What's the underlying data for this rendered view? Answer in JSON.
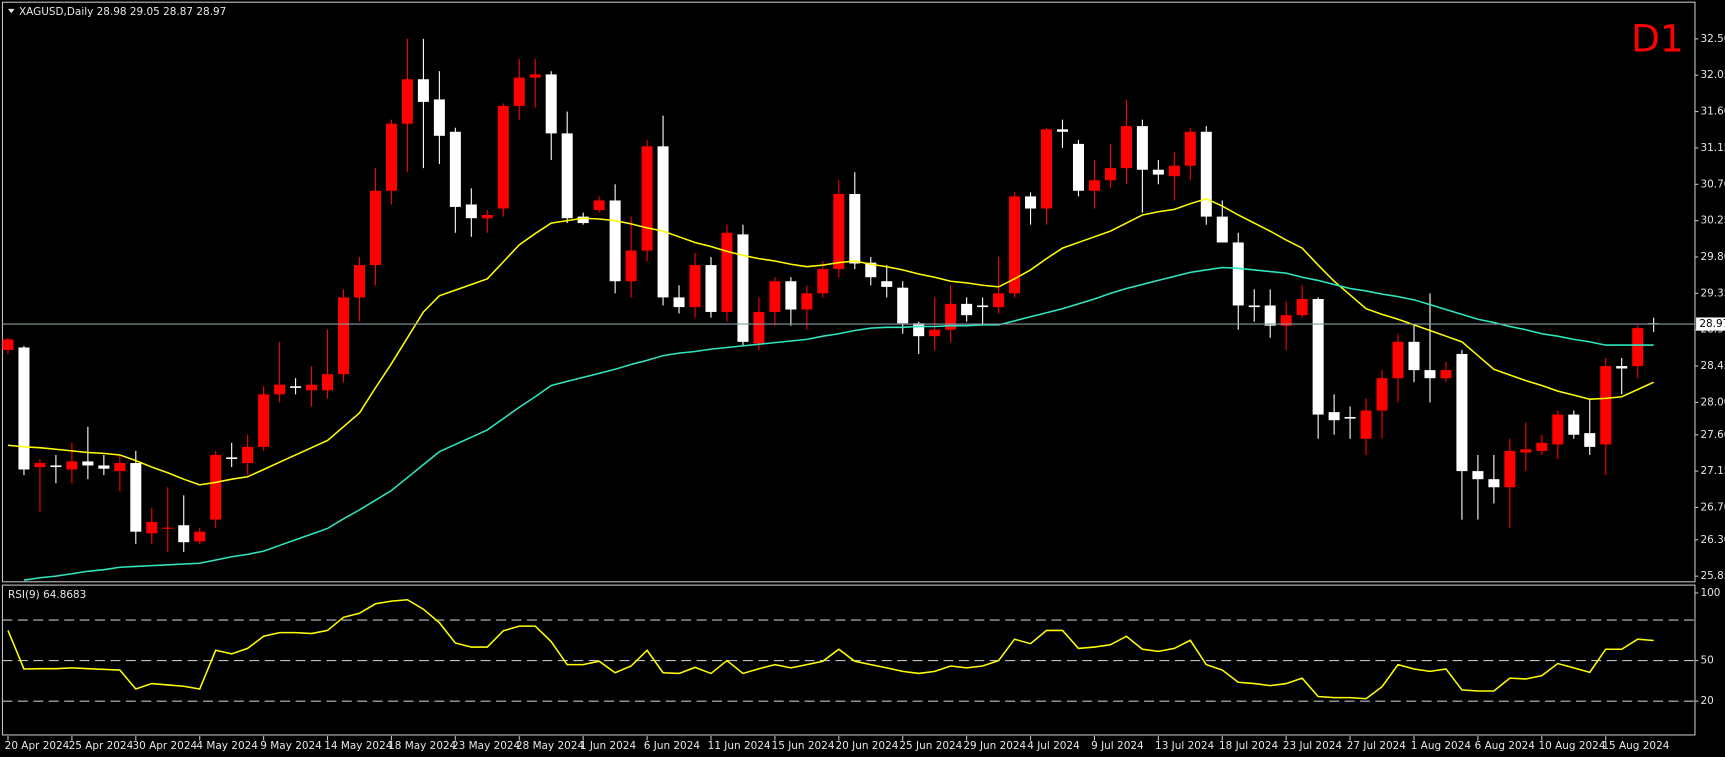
{
  "chart_data": [
    {
      "type": "candlestick",
      "title": "XAGUSD,Daily 28.98 29.05 28.87 28.97",
      "annotation": "D1",
      "up_color": "#ff0000",
      "down_color": "#ffffff",
      "open": [
        28.65,
        28.68,
        27.2,
        27.22,
        27.17,
        27.27,
        27.22,
        27.15,
        27.25,
        26.38,
        26.45,
        26.48,
        26.28,
        26.55,
        27.32,
        27.25,
        27.45,
        28.1,
        28.2,
        28.15,
        28.15,
        28.35,
        29.3,
        29.7,
        30.62,
        31.45,
        32.0,
        31.75,
        31.35,
        30.45,
        30.28,
        30.4,
        31.67,
        32.02,
        32.06,
        31.33,
        30.3,
        30.38,
        30.5,
        29.5,
        29.88,
        31.17,
        29.3,
        29.18,
        29.7,
        29.12,
        30.08,
        28.73,
        29.12,
        29.5,
        29.15,
        29.35,
        29.65,
        30.58,
        29.73,
        29.5,
        29.42,
        28.98,
        28.82,
        28.9,
        29.22,
        29.2,
        29.18,
        29.35,
        30.55,
        30.4,
        31.38,
        31.2,
        30.62,
        30.75,
        30.9,
        31.42,
        30.88,
        30.8,
        30.93,
        31.35,
        30.3,
        29.98,
        29.2,
        29.2,
        28.95,
        29.08,
        29.28,
        27.88,
        27.82,
        27.55,
        27.9,
        28.3,
        28.75,
        28.4,
        28.3,
        28.6,
        27.15,
        27.05,
        26.95,
        27.38,
        27.4,
        27.48,
        27.85,
        27.62,
        27.48,
        28.45,
        28.45,
        28.98
      ],
      "high": [
        28.8,
        28.7,
        27.3,
        27.35,
        27.5,
        27.7,
        27.35,
        27.35,
        27.4,
        26.7,
        26.95,
        26.85,
        26.45,
        27.4,
        27.5,
        27.6,
        28.2,
        28.75,
        28.3,
        28.45,
        28.9,
        29.4,
        29.8,
        30.9,
        31.5,
        32.5,
        32.5,
        32.1,
        31.4,
        30.65,
        30.38,
        31.7,
        32.25,
        32.25,
        32.1,
        31.6,
        30.35,
        30.55,
        30.7,
        30.3,
        31.25,
        31.55,
        29.45,
        29.85,
        29.8,
        30.2,
        30.2,
        29.3,
        29.55,
        29.55,
        29.45,
        29.75,
        30.75,
        30.85,
        29.8,
        29.7,
        29.5,
        29.0,
        29.3,
        29.45,
        29.3,
        29.3,
        29.8,
        30.6,
        30.6,
        31.4,
        31.5,
        31.25,
        31.0,
        31.2,
        31.75,
        31.5,
        31.0,
        31.1,
        31.4,
        31.42,
        30.5,
        30.1,
        29.4,
        29.4,
        29.25,
        29.45,
        29.3,
        28.1,
        27.95,
        28.05,
        28.4,
        28.85,
        28.95,
        29.35,
        28.5,
        28.65,
        27.35,
        27.35,
        27.55,
        27.75,
        27.6,
        27.9,
        27.9,
        28.05,
        28.55,
        28.55,
        28.95,
        29.05
      ],
      "low": [
        28.6,
        27.1,
        26.65,
        27.0,
        27.0,
        27.05,
        27.1,
        26.9,
        26.25,
        26.25,
        26.15,
        26.15,
        26.25,
        26.45,
        27.2,
        27.1,
        27.4,
        28.0,
        28.1,
        27.95,
        28.05,
        28.25,
        29.0,
        29.45,
        30.45,
        30.85,
        30.9,
        30.95,
        30.1,
        30.05,
        30.1,
        30.3,
        31.5,
        31.65,
        31.0,
        30.22,
        30.2,
        30.35,
        29.35,
        29.3,
        29.75,
        29.2,
        29.1,
        29.05,
        29.05,
        29.0,
        28.7,
        28.65,
        28.95,
        28.95,
        28.9,
        29.3,
        29.55,
        29.65,
        29.45,
        29.3,
        28.85,
        28.6,
        28.65,
        28.75,
        29.0,
        28.95,
        29.1,
        29.3,
        30.2,
        30.2,
        31.15,
        30.55,
        30.4,
        30.65,
        30.7,
        30.35,
        30.7,
        30.5,
        30.75,
        30.2,
        29.98,
        28.9,
        29.0,
        28.8,
        28.65,
        29.05,
        27.55,
        27.6,
        27.55,
        27.35,
        27.55,
        28.0,
        28.25,
        28.0,
        28.25,
        26.55,
        26.55,
        26.75,
        26.45,
        27.15,
        27.35,
        27.3,
        27.55,
        27.35,
        27.1,
        28.1,
        28.3,
        28.87
      ],
      "close": [
        28.78,
        27.17,
        27.25,
        27.2,
        27.27,
        27.22,
        27.18,
        27.25,
        26.4,
        26.52,
        26.45,
        26.27,
        26.4,
        27.35,
        27.3,
        27.45,
        28.1,
        28.22,
        28.18,
        28.22,
        28.35,
        29.3,
        29.7,
        30.62,
        31.45,
        32.0,
        31.72,
        31.3,
        30.42,
        30.28,
        30.32,
        31.67,
        32.02,
        32.06,
        31.33,
        30.28,
        30.22,
        30.5,
        29.5,
        29.88,
        31.17,
        29.3,
        29.18,
        29.7,
        29.12,
        30.1,
        28.75,
        29.12,
        29.5,
        29.15,
        29.35,
        29.65,
        30.58,
        29.72,
        29.55,
        29.43,
        28.98,
        28.82,
        28.9,
        29.22,
        29.08,
        29.18,
        29.35,
        30.55,
        30.4,
        31.38,
        31.35,
        30.62,
        30.75,
        30.9,
        31.42,
        30.88,
        30.82,
        30.93,
        31.35,
        30.3,
        29.98,
        29.2,
        29.18,
        28.95,
        29.08,
        29.28,
        27.85,
        27.78,
        27.8,
        27.9,
        28.3,
        28.75,
        28.4,
        28.3,
        28.4,
        27.15,
        27.05,
        26.95,
        27.4,
        27.42,
        27.5,
        27.85,
        27.6,
        27.45,
        28.45,
        28.42,
        28.92,
        28.97
      ],
      "series": [
        {
          "color": "#ffff00",
          "values": [
            27.47,
            27.45,
            27.44,
            27.42,
            27.4,
            27.38,
            27.37,
            27.35,
            27.28,
            27.2,
            27.13,
            27.05,
            26.98,
            27.01,
            27.05,
            27.08,
            27.17,
            27.26,
            27.35,
            27.44,
            27.53,
            27.7,
            27.87,
            28.18,
            28.48,
            28.8,
            29.12,
            29.32,
            29.39,
            29.46,
            29.53,
            29.74,
            29.95,
            30.09,
            30.22,
            30.25,
            30.28,
            30.27,
            30.25,
            30.21,
            30.16,
            30.12,
            30.05,
            29.98,
            29.93,
            29.87,
            29.82,
            29.78,
            29.75,
            29.71,
            29.68,
            29.7,
            29.73,
            29.75,
            29.71,
            29.68,
            29.64,
            29.59,
            29.55,
            29.5,
            29.48,
            29.45,
            29.43,
            29.53,
            29.64,
            29.78,
            29.91,
            29.98,
            30.05,
            30.12,
            30.22,
            30.32,
            30.36,
            30.39,
            30.46,
            30.52,
            30.43,
            30.32,
            30.22,
            30.12,
            30.01,
            29.91,
            29.7,
            29.5,
            29.33,
            29.16,
            29.09,
            29.03,
            28.96,
            28.89,
            28.82,
            28.75,
            28.58,
            28.41,
            28.34,
            28.27,
            28.21,
            28.14,
            28.09,
            28.04,
            28.05,
            28.07,
            28.16,
            28.25
          ]
        },
        {
          "color": "#2ee6c0",
          "values": [
            null,
            25.8,
            25.83,
            25.85,
            25.88,
            25.91,
            25.93,
            25.96,
            25.97,
            25.98,
            25.99,
            26.0,
            26.01,
            26.05,
            26.09,
            26.12,
            26.16,
            26.23,
            26.3,
            26.37,
            26.44,
            26.56,
            26.67,
            26.79,
            26.91,
            27.07,
            27.23,
            27.39,
            27.48,
            27.57,
            27.66,
            27.8,
            27.94,
            28.07,
            28.21,
            28.26,
            28.31,
            28.36,
            28.41,
            28.47,
            28.52,
            28.58,
            28.61,
            28.63,
            28.66,
            28.68,
            28.7,
            28.72,
            28.74,
            28.76,
            28.78,
            28.82,
            28.85,
            28.89,
            28.92,
            28.93,
            28.93,
            28.94,
            28.94,
            28.95,
            28.95,
            28.96,
            28.96,
            29.01,
            29.06,
            29.11,
            29.16,
            29.22,
            29.28,
            29.35,
            29.41,
            29.46,
            29.51,
            29.56,
            29.61,
            29.64,
            29.67,
            29.66,
            29.64,
            29.62,
            29.6,
            29.55,
            29.51,
            29.46,
            29.41,
            29.38,
            29.34,
            29.31,
            29.27,
            29.21,
            29.15,
            29.09,
            29.03,
            28.99,
            28.94,
            28.9,
            28.85,
            28.82,
            28.78,
            28.75,
            28.71,
            28.71,
            28.71,
            28.71
          ]
        }
      ],
      "last_price": 28.97,
      "ylim": [
        25.78,
        32.94
      ],
      "yticks": [
        {
          "value": 32.5,
          "label": "32.50"
        },
        {
          "value": 32.05,
          "label": "32.05"
        },
        {
          "value": 31.6,
          "label": "31.60"
        },
        {
          "value": 31.15,
          "label": "31.15"
        },
        {
          "value": 30.7,
          "label": "30.70"
        },
        {
          "value": 30.25,
          "label": "30.25"
        },
        {
          "value": 29.8,
          "label": "29.80"
        },
        {
          "value": 29.35,
          "label": "29.35"
        },
        {
          "value": 28.9,
          "label": "28.90"
        },
        {
          "value": 28.45,
          "label": "28.45"
        },
        {
          "value": 28.0,
          "label": "28.00"
        },
        {
          "value": 27.6,
          "label": "27.60"
        },
        {
          "value": 27.15,
          "label": "27.15"
        },
        {
          "value": 26.7,
          "label": "26.70"
        },
        {
          "value": 26.3,
          "label": "26.30"
        },
        {
          "value": 25.85,
          "label": "25.85"
        }
      ]
    },
    {
      "type": "line",
      "title": "RSI(9) 64.8683",
      "categories": [
        "20 Apr 2024",
        null,
        null,
        null,
        "25 Apr 2024",
        null,
        null,
        null,
        "30 Apr 2024",
        null,
        null,
        null,
        "4 May 2024",
        null,
        null,
        null,
        "9 May 2024",
        null,
        null,
        null,
        "14 May 2024",
        null,
        null,
        null,
        "18 May 2024",
        null,
        null,
        null,
        "23 May 2024",
        null,
        null,
        null,
        "28 May 2024",
        null,
        null,
        null,
        "1 Jun 2024",
        null,
        null,
        null,
        "6 Jun 2024",
        null,
        null,
        null,
        "11 Jun 2024",
        null,
        null,
        null,
        "15 Jun 2024",
        null,
        null,
        null,
        "20 Jun 2024",
        null,
        null,
        null,
        "25 Jun 2024",
        null,
        null,
        null,
        "29 Jun 2024",
        null,
        null,
        null,
        "4 Jul 2024",
        null,
        null,
        null,
        "9 Jul 2024",
        null,
        null,
        null,
        "13 Jul 2024",
        null,
        null,
        null,
        "18 Jul 2024",
        null,
        null,
        null,
        "23 Jul 2024",
        null,
        null,
        null,
        "27 Jul 2024",
        null,
        null,
        null,
        "1 Aug 2024",
        null,
        null,
        null,
        "6 Aug 2024",
        null,
        null,
        null,
        "10 Aug 2024",
        null,
        null,
        null,
        "15 Aug 2024",
        null,
        null,
        null
      ],
      "series": [
        {
          "color": "#ffff00",
          "values": [
            72.3,
            43.8,
            44,
            44,
            44.6,
            44,
            43.5,
            43,
            29,
            33,
            32,
            31,
            29,
            57.6,
            55,
            59,
            68,
            70.7,
            70.7,
            70,
            72.3,
            82,
            85,
            92,
            94,
            95,
            88,
            78,
            63,
            60,
            60,
            72,
            75.5,
            75.5,
            64,
            47,
            47,
            49.5,
            41,
            46,
            57.6,
            41,
            40.5,
            45,
            40.5,
            50,
            40.5,
            44,
            47,
            44.6,
            47,
            49.5,
            58.4,
            49.5,
            47,
            44.6,
            42,
            40.5,
            42,
            46,
            44.6,
            46,
            50,
            65.8,
            62.5,
            72.3,
            72.3,
            59,
            60,
            61.7,
            68,
            58.4,
            56.8,
            59,
            65,
            47,
            43,
            34,
            33,
            31.5,
            33,
            37,
            23.4,
            22.6,
            22.6,
            21.8,
            30.7,
            47,
            43.8,
            42,
            43.8,
            28.3,
            27.5,
            27.5,
            37,
            36.4,
            38.9,
            47.8,
            44.6,
            41.3,
            58.4,
            58.4,
            65.8,
            64.8683
          ]
        }
      ],
      "levels": [
        80,
        50,
        20
      ],
      "ylim": [
        -5,
        105
      ],
      "yticks": [
        100,
        50,
        20
      ]
    }
  ]
}
